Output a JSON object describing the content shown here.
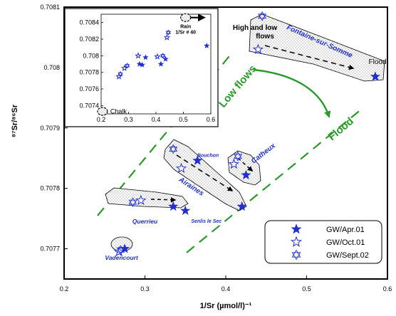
{
  "chart_data": [
    {
      "type": "scatter",
      "xlabel": "1/Sr (µmol/l)⁻¹",
      "ylabel": "⁸⁷Sr/⁸⁶Sr",
      "xlim": [
        0.2,
        0.6
      ],
      "ylim": [
        0.70765,
        0.7081
      ],
      "x_ticks": [
        "0.2",
        "0.3",
        "0.4",
        "0.5",
        "0.6"
      ],
      "y_ticks": [
        "0.7077",
        "0.7078",
        "0.7079",
        "0.708",
        "0.7081"
      ],
      "legend": {
        "placement": "bottom-right",
        "entries": [
          "GW/Apr.01",
          "GW/Oct.01",
          "GW/Sept.02"
        ]
      },
      "series": [
        {
          "name": "GW/Apr.01",
          "marker": "filled-star",
          "points": [
            {
              "x": 0.275,
              "y": 0.7077
            },
            {
              "x": 0.335,
              "y": 0.70777
            },
            {
              "x": 0.35,
              "y": 0.707763
            },
            {
              "x": 0.365,
              "y": 0.707846
            },
            {
              "x": 0.42,
              "y": 0.70777
            },
            {
              "x": 0.425,
              "y": 0.707822
            },
            {
              "x": 0.585,
              "y": 0.707985
            }
          ]
        },
        {
          "name": "GW/Oct.01",
          "marker": "open-star",
          "points": [
            {
              "x": 0.268,
              "y": 0.707695
            },
            {
              "x": 0.295,
              "y": 0.70778
            },
            {
              "x": 0.345,
              "y": 0.707833
            },
            {
              "x": 0.41,
              "y": 0.70784
            },
            {
              "x": 0.44,
              "y": 0.70803
            }
          ]
        },
        {
          "name": "GW/Sept.02",
          "marker": "open-star-of-david",
          "points": [
            {
              "x": 0.27,
              "y": 0.707698
            },
            {
              "x": 0.285,
              "y": 0.707777
            },
            {
              "x": 0.335,
              "y": 0.707865
            },
            {
              "x": 0.415,
              "y": 0.707853
            },
            {
              "x": 0.445,
              "y": 0.708085
            }
          ]
        }
      ],
      "site_labels": [
        {
          "text": "Fontaine-sur-Somme",
          "x": 0.515,
          "y": 0.70804
        },
        {
          "text": "Bouchon",
          "x": 0.378,
          "y": 0.707852
        },
        {
          "text": "Catheux",
          "x": 0.448,
          "y": 0.707855
        },
        {
          "text": "Airaines",
          "x": 0.356,
          "y": 0.7078
        },
        {
          "text": "Querrieu",
          "x": 0.3,
          "y": 0.707742
        },
        {
          "text": "Senlis le Sec",
          "x": 0.376,
          "y": 0.707743
        },
        {
          "text": "Vadencourt",
          "x": 0.271,
          "y": 0.707682
        }
      ],
      "annotations": {
        "high_low_flows": [
          "High and low",
          "flows"
        ],
        "flood_point": "Flood",
        "trend_low": "Low flows",
        "trend_flood": "Flood"
      }
    },
    {
      "type": "scatter",
      "inset": true,
      "xlim": [
        0.2,
        0.6
      ],
      "ylim": [
        0.7073,
        0.7085
      ],
      "x_ticks": [
        "0.2",
        "0.3",
        "0.4",
        "0.5",
        "0.6"
      ],
      "y_ticks": [
        "0.7074",
        "0.7076",
        "0.7078",
        "0.708",
        "0.7082",
        "0.7084"
      ],
      "points": [
        {
          "x": 0.265,
          "y": 0.70775,
          "marker": "open-star"
        },
        {
          "x": 0.27,
          "y": 0.70778,
          "marker": "open-star-of-david"
        },
        {
          "x": 0.285,
          "y": 0.70785,
          "marker": "open-star"
        },
        {
          "x": 0.295,
          "y": 0.70788,
          "marker": "open-star-of-david"
        },
        {
          "x": 0.335,
          "y": 0.708,
          "marker": "open-star"
        },
        {
          "x": 0.34,
          "y": 0.7079,
          "marker": "filled-star"
        },
        {
          "x": 0.35,
          "y": 0.70789,
          "marker": "filled-star"
        },
        {
          "x": 0.362,
          "y": 0.70798,
          "marker": "filled-star"
        },
        {
          "x": 0.405,
          "y": 0.70799,
          "marker": "open-star"
        },
        {
          "x": 0.418,
          "y": 0.7079,
          "marker": "filled-star"
        },
        {
          "x": 0.425,
          "y": 0.708,
          "marker": "open-star-of-david"
        },
        {
          "x": 0.435,
          "y": 0.70796,
          "marker": "filled-star"
        },
        {
          "x": 0.44,
          "y": 0.70822,
          "marker": "open-star"
        },
        {
          "x": 0.445,
          "y": 0.70828,
          "marker": "open-star-of-david"
        },
        {
          "x": 0.585,
          "y": 0.70812,
          "marker": "filled-star"
        }
      ],
      "endmembers": [
        {
          "text": "Chalk",
          "x": 0.205,
          "y": 0.70733
        },
        {
          "text": "Rain",
          "text2": "1/Sr # 40",
          "x": 0.555,
          "y": 0.70846
        }
      ]
    }
  ]
}
